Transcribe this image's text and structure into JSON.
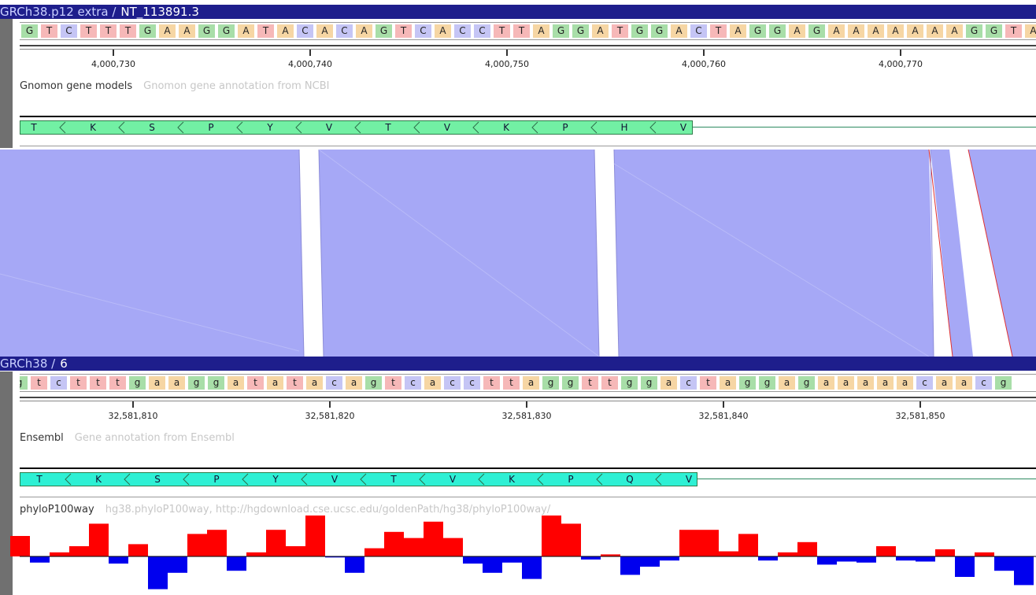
{
  "top_panel": {
    "assembly": "GRCh38.p12 extra /",
    "sequence_id": "NT_113891.3",
    "bases": "GTCTTTGAAGGATACACAGTCACCTTAGGATGGACTAGGAGAAAAAAAGGTAC",
    "ruler_labels": [
      "4,000,730",
      "4,000,740",
      "4,000,750",
      "4,000,760",
      "4,000,770"
    ],
    "track_name": "Gnomon gene models",
    "track_desc": "Gnomon gene annotation from NCBI",
    "amino_acids": [
      "T",
      "K",
      "S",
      "P",
      "Y",
      "V",
      "T",
      "V",
      "K",
      "P",
      "H",
      "V"
    ]
  },
  "bottom_panel": {
    "assembly": "GRCh38 /",
    "sequence_id": "6",
    "bases": "gtctttgaaggatatacagtcaccttaggttggactaggagaaaaacaacg",
    "ruler_labels": [
      "32,581,810",
      "32,581,820",
      "32,581,830",
      "32,581,840",
      "32,581,850"
    ],
    "track_name": "Ensembl",
    "track_desc": "Gene annotation from Ensembl",
    "amino_acids": [
      "T",
      "K",
      "S",
      "P",
      "Y",
      "V",
      "T",
      "V",
      "K",
      "P",
      "Q",
      "V"
    ],
    "phylo_name": "phyloP100way",
    "phylo_desc": "hg38.phyloP100way, http://hgdownload.cse.ucsc.edu/goldenPath/hg38/phyloP100way/",
    "phylo_values": [
      1.0,
      -0.3,
      0.2,
      0.5,
      1.6,
      -0.35,
      0.6,
      -1.6,
      -0.8,
      1.1,
      1.3,
      -0.7,
      0.2,
      1.3,
      0.5,
      2.0,
      -0.05,
      -0.8,
      0.4,
      1.2,
      0.9,
      1.7,
      0.9,
      -0.35,
      -0.8,
      -0.3,
      -1.1,
      2.0,
      1.6,
      -0.15,
      0.1,
      -0.9,
      -0.5,
      -0.2,
      1.3,
      1.3,
      0.25,
      1.1,
      -0.2,
      0.2,
      0.7,
      -0.4,
      -0.25,
      -0.3,
      0.5,
      -0.2,
      -0.25,
      0.35,
      -1.0,
      0.2,
      -0.7,
      -1.4
    ]
  },
  "colors": {
    "A": "#f6d6a4",
    "C": "#c5c5f5",
    "G": "#a8dea8",
    "T": "#f6b8b8",
    "gene_top": "#72f0a4",
    "gene_bottom": "#2ef0d4",
    "alignment": "#a6a8f6",
    "phylo_pos": "#ff0000",
    "phylo_neg": "#0000ee"
  }
}
